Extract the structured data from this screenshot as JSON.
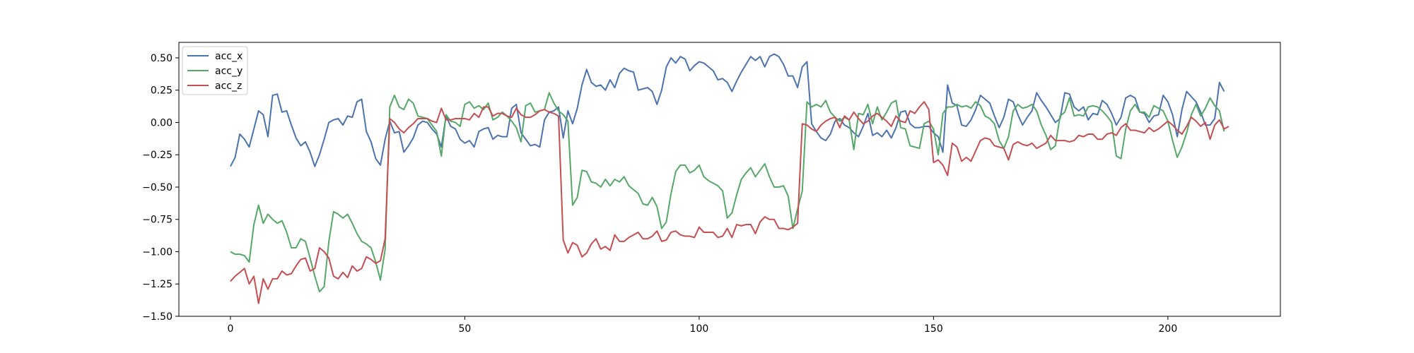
{
  "chart_data": {
    "type": "line",
    "xlim": [
      -11,
      224
    ],
    "ylim": [
      -1.5,
      0.62
    ],
    "x_ticks": [
      0,
      50,
      100,
      150,
      200
    ],
    "y_ticks": [
      0.5,
      0.25,
      0.0,
      -0.25,
      -0.5,
      -0.75,
      -1.0,
      -1.25,
      -1.5
    ],
    "x_tick_labels": [
      "0",
      "50",
      "100",
      "150",
      "200"
    ],
    "y_tick_labels": [
      "0.50",
      "0.25",
      "0.00",
      "−0.25",
      "−0.50",
      "−0.75",
      "−1.00",
      "−1.25",
      "−1.50"
    ],
    "legend_position": "upper-left",
    "series": [
      {
        "name": "acc_x",
        "color": "#4c72b0",
        "values": [
          -0.34,
          -0.27,
          -0.09,
          -0.13,
          -0.19,
          -0.05,
          0.09,
          0.06,
          -0.11,
          0.21,
          0.22,
          0.08,
          0.09,
          -0.02,
          -0.12,
          -0.18,
          -0.15,
          -0.23,
          -0.34,
          -0.25,
          -0.13,
          0.0,
          0.02,
          0.03,
          -0.02,
          0.05,
          0.04,
          0.16,
          0.18,
          -0.07,
          -0.15,
          -0.28,
          -0.33,
          -0.13,
          0.01,
          -0.08,
          -0.07,
          -0.23,
          -0.18,
          -0.12,
          -0.02,
          0.01,
          0.0,
          -0.05,
          -0.09,
          -0.19,
          0.05,
          -0.03,
          -0.05,
          -0.13,
          -0.16,
          -0.14,
          -0.19,
          -0.07,
          -0.05,
          -0.04,
          -0.13,
          -0.1,
          -0.11,
          -0.11,
          0.11,
          0.14,
          -0.08,
          -0.13,
          -0.18,
          -0.17,
          -0.19,
          0.02,
          0.08,
          0.09,
          0.12,
          -0.12,
          0.09,
          -0.01,
          0.11,
          0.29,
          0.41,
          0.31,
          0.28,
          0.29,
          0.25,
          0.33,
          0.27,
          0.38,
          0.42,
          0.4,
          0.39,
          0.25,
          0.26,
          0.27,
          0.24,
          0.14,
          0.25,
          0.43,
          0.5,
          0.46,
          0.51,
          0.49,
          0.4,
          0.44,
          0.47,
          0.46,
          0.43,
          0.4,
          0.33,
          0.34,
          0.31,
          0.24,
          0.32,
          0.39,
          0.45,
          0.51,
          0.48,
          0.51,
          0.43,
          0.51,
          0.53,
          0.51,
          0.45,
          0.36,
          0.36,
          0.27,
          0.43,
          0.47,
          -0.01,
          -0.07,
          -0.12,
          -0.14,
          -0.09,
          0.01,
          0.03,
          -0.02,
          -0.04,
          -0.08,
          -0.11,
          -0.03,
          0.07,
          -0.1,
          -0.08,
          -0.11,
          -0.06,
          -0.12,
          -0.04,
          0.08,
          0.09,
          -0.01,
          -0.04,
          -0.04,
          -0.03,
          -0.03,
          -0.08,
          -0.11,
          -0.23,
          0.29,
          0.15,
          0.13,
          -0.02,
          -0.03,
          0.02,
          0.1,
          0.21,
          0.18,
          0.15,
          0.05,
          -0.04,
          0.04,
          0.18,
          0.16,
          0.06,
          -0.02,
          0.04,
          0.09,
          0.23,
          0.17,
          0.12,
          0.06,
          0.0,
          0.03,
          0.23,
          0.22,
          0.12,
          0.09,
          0.12,
          0.02,
          0.07,
          0.06,
          0.17,
          0.14,
          0.07,
          -0.02,
          0.04,
          0.19,
          0.21,
          0.19,
          0.08,
          0.07,
          0.0,
          0.05,
          0.06,
          0.21,
          0.16,
          0.06,
          -0.11,
          0.1,
          0.24,
          0.2,
          0.16,
          0.08,
          -0.02,
          -0.02,
          0.03,
          0.31,
          0.24
        ]
      },
      {
        "name": "acc_y",
        "color": "#55a868",
        "values": [
          -1.0,
          -1.02,
          -1.02,
          -1.03,
          -1.08,
          -0.79,
          -0.64,
          -0.78,
          -0.71,
          -0.75,
          -0.78,
          -0.76,
          -0.85,
          -0.97,
          -0.97,
          -0.9,
          -0.92,
          -1.05,
          -1.19,
          -1.31,
          -1.27,
          -0.92,
          -0.69,
          -0.71,
          -0.74,
          -0.71,
          -0.78,
          -0.86,
          -0.92,
          -0.94,
          -0.97,
          -1.08,
          -1.22,
          -0.98,
          0.12,
          0.21,
          0.12,
          0.1,
          0.18,
          0.15,
          0.05,
          0.04,
          0.03,
          -0.02,
          -0.07,
          -0.26,
          0.06,
          0.01,
          0.0,
          -0.03,
          0.14,
          0.16,
          0.11,
          0.13,
          0.1,
          0.15,
          0.02,
          0.04,
          0.08,
          0.05,
          0.01,
          -0.04,
          -0.15,
          0.13,
          0.15,
          0.08,
          0.09,
          0.1,
          0.23,
          0.15,
          0.09,
          0.06,
          0.01,
          -0.64,
          -0.58,
          -0.37,
          -0.38,
          -0.46,
          -0.47,
          -0.5,
          -0.44,
          -0.49,
          -0.44,
          -0.46,
          -0.42,
          -0.49,
          -0.52,
          -0.55,
          -0.63,
          -0.64,
          -0.58,
          -0.65,
          -0.82,
          -0.77,
          -0.55,
          -0.38,
          -0.33,
          -0.33,
          -0.39,
          -0.37,
          -0.33,
          -0.42,
          -0.45,
          -0.47,
          -0.49,
          -0.53,
          -0.74,
          -0.7,
          -0.56,
          -0.44,
          -0.39,
          -0.35,
          -0.42,
          -0.37,
          -0.32,
          -0.42,
          -0.5,
          -0.5,
          -0.49,
          -0.57,
          -0.82,
          -0.67,
          -0.53,
          0.16,
          0.12,
          0.14,
          0.12,
          0.17,
          0.08,
          0.04,
          0.01,
          0.04,
          0.02,
          -0.21,
          0.07,
          0.06,
          0.14,
          -0.01,
          0.12,
          0.02,
          0.08,
          0.15,
          0.17,
          -0.04,
          -0.05,
          -0.18,
          -0.19,
          -0.2,
          -0.01,
          0.01,
          -0.05,
          -0.25,
          0.07,
          0.12,
          0.12,
          0.14,
          0.12,
          0.13,
          0.11,
          0.16,
          0.13,
          0.05,
          0.03,
          -0.01,
          -0.14,
          -0.2,
          -0.11,
          0.09,
          0.14,
          0.11,
          0.12,
          0.14,
          0.09,
          -0.02,
          -0.1,
          -0.21,
          -0.18,
          0.05,
          0.08,
          0.19,
          0.05,
          0.06,
          0.05,
          0.12,
          0.13,
          0.12,
          0.09,
          0.05,
          0.0,
          -0.26,
          -0.28,
          -0.05,
          0.09,
          0.14,
          0.08,
          0.08,
          0.04,
          0.13,
          0.11,
          0.09,
          0.01,
          -0.14,
          -0.27,
          -0.19,
          -0.08,
          0.06,
          0.14,
          0.05,
          0.11,
          0.19,
          0.13,
          0.09,
          -0.07
        ]
      },
      {
        "name": "acc_z",
        "color": "#c44e52",
        "values": [
          -1.23,
          -1.19,
          -1.16,
          -1.13,
          -1.25,
          -1.19,
          -1.4,
          -1.21,
          -1.29,
          -1.21,
          -1.21,
          -1.15,
          -1.18,
          -1.17,
          -1.11,
          -1.06,
          -1.05,
          -1.15,
          -1.13,
          -0.97,
          -1.0,
          -1.05,
          -1.19,
          -1.21,
          -1.16,
          -1.2,
          -1.11,
          -1.15,
          -1.13,
          -1.04,
          -1.06,
          -1.09,
          -1.07,
          -0.9,
          0.03,
          0.0,
          -0.05,
          -0.08,
          -0.04,
          -0.01,
          0.03,
          0.03,
          0.03,
          0.01,
          0.0,
          0.11,
          0.02,
          0.02,
          0.03,
          0.03,
          0.03,
          0.02,
          0.07,
          0.04,
          0.12,
          0.12,
          0.05,
          0.07,
          0.07,
          0.05,
          0.04,
          0.11,
          0.06,
          0.04,
          0.04,
          0.06,
          0.09,
          0.1,
          0.08,
          0.07,
          0.05,
          -0.91,
          -1.01,
          -0.93,
          -0.95,
          -1.04,
          -1.01,
          -0.94,
          -0.9,
          -0.98,
          -0.96,
          -0.99,
          -0.87,
          -0.92,
          -0.92,
          -0.89,
          -0.87,
          -0.85,
          -0.9,
          -0.9,
          -0.88,
          -0.84,
          -0.92,
          -0.91,
          -0.85,
          -0.84,
          -0.87,
          -0.88,
          -0.88,
          -0.89,
          -0.81,
          -0.85,
          -0.85,
          -0.85,
          -0.89,
          -0.88,
          -0.82,
          -0.89,
          -0.79,
          -0.8,
          -0.79,
          -0.79,
          -0.86,
          -0.77,
          -0.73,
          -0.75,
          -0.75,
          -0.82,
          -0.82,
          -0.83,
          -0.81,
          -0.78,
          -0.01,
          -0.02,
          -0.05,
          -0.07,
          -0.02,
          0.01,
          0.03,
          0.04,
          -0.04,
          0.05,
          0.02,
          0.08,
          0.03,
          -0.01,
          0.01,
          0.05,
          0.07,
          0.04,
          0.01,
          -0.03,
          0.05,
          0.01,
          0.0,
          0.09,
          0.07,
          0.12,
          0.16,
          0.1,
          -0.31,
          -0.29,
          -0.33,
          -0.41,
          -0.16,
          -0.19,
          -0.3,
          -0.27,
          -0.3,
          -0.22,
          -0.14,
          -0.12,
          -0.13,
          -0.18,
          -0.19,
          -0.2,
          -0.29,
          -0.17,
          -0.15,
          -0.17,
          -0.18,
          -0.16,
          -0.2,
          -0.18,
          -0.16,
          -0.1,
          -0.14,
          -0.14,
          -0.14,
          -0.15,
          -0.14,
          -0.1,
          -0.11,
          -0.09,
          -0.09,
          -0.13,
          -0.13,
          -0.09,
          -0.08,
          -0.1,
          -0.04,
          -0.01,
          -0.06,
          -0.06,
          -0.07,
          -0.08,
          -0.04,
          -0.07,
          -0.05,
          -0.02,
          0.01,
          -0.02,
          -0.06,
          -0.09,
          -0.03,
          0.04,
          0.01,
          -0.03,
          0.0,
          -0.13,
          -0.02,
          0.02,
          -0.05,
          -0.03
        ]
      }
    ]
  }
}
